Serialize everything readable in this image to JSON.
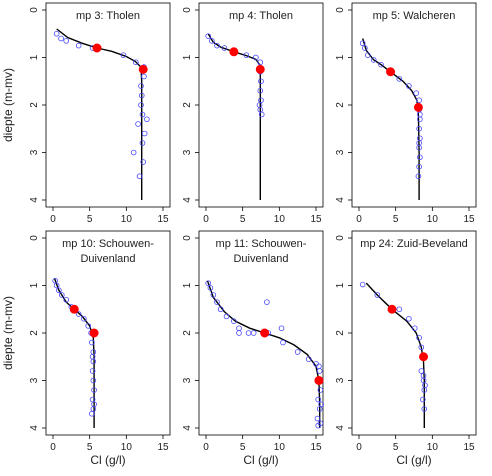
{
  "figure": {
    "y_axis_label": "diepte (m-mv)",
    "x_axis_label": "Cl (g/l)",
    "colors": {
      "line": "#000000",
      "points": "#4444ff",
      "highlight": "#ff0000",
      "frame": "#000000"
    }
  },
  "chart_data": [
    {
      "type": "scatter",
      "title": "mp 3: Tholen",
      "xlim": [
        0,
        15
      ],
      "ylim": [
        0,
        4
      ],
      "x_ticks": [
        0,
        5,
        10,
        15
      ],
      "y_ticks": [
        0,
        1,
        2,
        3,
        4
      ],
      "y_inverted": true,
      "observations": [
        [
          0.5,
          0.5
        ],
        [
          1.1,
          0.6
        ],
        [
          1.8,
          0.65
        ],
        [
          3.5,
          0.75
        ],
        [
          5.4,
          0.8
        ],
        [
          9.6,
          0.95
        ],
        [
          11.3,
          1.1
        ],
        [
          12.4,
          1.2
        ],
        [
          12.4,
          1.4
        ],
        [
          12.0,
          1.6
        ],
        [
          12.1,
          1.8
        ],
        [
          12.0,
          2.0
        ],
        [
          12.2,
          2.2
        ],
        [
          11.6,
          2.4
        ],
        [
          12.5,
          2.6
        ],
        [
          12.8,
          2.3
        ],
        [
          12.2,
          2.8
        ],
        [
          12.3,
          3.2
        ],
        [
          11.0,
          3.0
        ],
        [
          11.8,
          3.5
        ]
      ],
      "highlight_points": [
        [
          6.0,
          0.8
        ],
        [
          12.3,
          1.25
        ]
      ],
      "fit_curve": [
        [
          0.5,
          0.4
        ],
        [
          2.0,
          0.58
        ],
        [
          4.0,
          0.7
        ],
        [
          6.0,
          0.8
        ],
        [
          8.0,
          0.87
        ],
        [
          10.0,
          0.98
        ],
        [
          11.2,
          1.08
        ],
        [
          12.0,
          1.2
        ],
        [
          12.1,
          1.5
        ],
        [
          12.1,
          2.0
        ],
        [
          12.1,
          3.0
        ],
        [
          12.1,
          4.0
        ]
      ]
    },
    {
      "type": "scatter",
      "title": "mp 4: Tholen",
      "xlim": [
        0,
        15
      ],
      "ylim": [
        0,
        4
      ],
      "x_ticks": [
        0,
        5,
        10,
        15
      ],
      "y_ticks": [
        0,
        1,
        2,
        3,
        4
      ],
      "y_inverted": true,
      "observations": [
        [
          0.3,
          0.55
        ],
        [
          0.8,
          0.65
        ],
        [
          1.5,
          0.75
        ],
        [
          2.5,
          0.8
        ],
        [
          3.8,
          0.88
        ],
        [
          5.5,
          0.95
        ],
        [
          6.8,
          1.0
        ],
        [
          7.4,
          1.1
        ],
        [
          7.4,
          1.3
        ],
        [
          7.5,
          1.5
        ],
        [
          7.4,
          1.7
        ],
        [
          7.5,
          1.9
        ],
        [
          7.4,
          2.1
        ],
        [
          7.6,
          2.2
        ],
        [
          7.3,
          2.0
        ]
      ],
      "highlight_points": [
        [
          3.8,
          0.88
        ],
        [
          7.4,
          1.25
        ]
      ],
      "fit_curve": [
        [
          0.3,
          0.5
        ],
        [
          1.0,
          0.68
        ],
        [
          2.0,
          0.78
        ],
        [
          3.8,
          0.88
        ],
        [
          5.5,
          0.96
        ],
        [
          6.8,
          1.04
        ],
        [
          7.3,
          1.15
        ],
        [
          7.4,
          1.35
        ],
        [
          7.4,
          2.0
        ],
        [
          7.4,
          3.0
        ],
        [
          7.4,
          4.0
        ]
      ]
    },
    {
      "type": "scatter",
      "title": "mp 5: Walcheren",
      "xlim": [
        0,
        15
      ],
      "ylim": [
        0,
        4
      ],
      "x_ticks": [
        0,
        5,
        10,
        15
      ],
      "y_ticks": [
        0,
        1,
        2,
        3,
        4
      ],
      "y_inverted": true,
      "observations": [
        [
          0.5,
          0.7
        ],
        [
          0.8,
          0.8
        ],
        [
          1.2,
          0.95
        ],
        [
          2.0,
          1.05
        ],
        [
          3.0,
          1.15
        ],
        [
          4.5,
          1.3
        ],
        [
          5.5,
          1.45
        ],
        [
          6.8,
          1.6
        ],
        [
          7.8,
          1.75
        ],
        [
          8.2,
          1.9
        ],
        [
          8.2,
          2.1
        ],
        [
          8.3,
          2.3
        ],
        [
          8.2,
          2.5
        ],
        [
          8.3,
          2.7
        ],
        [
          8.2,
          2.9
        ],
        [
          8.3,
          3.1
        ],
        [
          8.2,
          3.3
        ],
        [
          8.1,
          3.5
        ],
        [
          8.3,
          2.2
        ],
        [
          8.2,
          2.8
        ]
      ],
      "highlight_points": [
        [
          4.3,
          1.3
        ],
        [
          8.1,
          2.05
        ]
      ],
      "fit_curve": [
        [
          0.5,
          0.6
        ],
        [
          1.0,
          0.85
        ],
        [
          2.0,
          1.05
        ],
        [
          3.0,
          1.15
        ],
        [
          4.3,
          1.3
        ],
        [
          6.0,
          1.5
        ],
        [
          7.2,
          1.7
        ],
        [
          7.9,
          1.9
        ],
        [
          8.1,
          2.2
        ],
        [
          8.2,
          3.0
        ],
        [
          8.2,
          4.0
        ]
      ]
    },
    {
      "type": "scatter",
      "title": "mp 10: Schouwen-Duivenland",
      "title_lines": [
        "mp 10: Schouwen-",
        "Duivenland"
      ],
      "xlim": [
        0,
        15
      ],
      "ylim": [
        0,
        4
      ],
      "x_ticks": [
        0,
        5,
        10,
        15
      ],
      "y_ticks": [
        0,
        1,
        2,
        3,
        4
      ],
      "y_inverted": true,
      "observations": [
        [
          0.3,
          0.9
        ],
        [
          0.5,
          1.0
        ],
        [
          0.8,
          1.1
        ],
        [
          1.2,
          1.2
        ],
        [
          1.8,
          1.3
        ],
        [
          2.5,
          1.45
        ],
        [
          3.5,
          1.6
        ],
        [
          4.2,
          1.7
        ],
        [
          4.8,
          1.85
        ],
        [
          5.2,
          2.0
        ],
        [
          5.3,
          2.2
        ],
        [
          5.5,
          2.4
        ],
        [
          5.5,
          2.6
        ],
        [
          5.4,
          2.8
        ],
        [
          5.5,
          3.0
        ],
        [
          5.6,
          3.2
        ],
        [
          5.4,
          3.4
        ],
        [
          5.5,
          3.6
        ],
        [
          5.3,
          3.7
        ],
        [
          5.6,
          3.5
        ],
        [
          5.4,
          2.5
        ]
      ],
      "highlight_points": [
        [
          2.9,
          1.5
        ],
        [
          5.6,
          2.0
        ]
      ],
      "fit_curve": [
        [
          0.2,
          0.85
        ],
        [
          0.8,
          1.1
        ],
        [
          1.8,
          1.35
        ],
        [
          2.9,
          1.5
        ],
        [
          4.0,
          1.65
        ],
        [
          5.0,
          1.85
        ],
        [
          5.5,
          2.1
        ],
        [
          5.6,
          2.5
        ],
        [
          5.6,
          3.0
        ],
        [
          5.6,
          4.0
        ]
      ]
    },
    {
      "type": "scatter",
      "title": "mp 11: Schouwen-Duivenland",
      "title_lines": [
        "mp 11: Schouwen-",
        "Duivenland"
      ],
      "xlim": [
        0,
        15
      ],
      "ylim": [
        0,
        4
      ],
      "x_ticks": [
        0,
        5,
        10,
        15
      ],
      "y_ticks": [
        0,
        1,
        2,
        3,
        4
      ],
      "y_inverted": true,
      "observations": [
        [
          0.3,
          0.95
        ],
        [
          0.6,
          1.05
        ],
        [
          1.0,
          1.2
        ],
        [
          1.5,
          1.35
        ],
        [
          2.0,
          1.5
        ],
        [
          2.8,
          1.65
        ],
        [
          3.8,
          1.75
        ],
        [
          4.5,
          1.9
        ],
        [
          5.8,
          2.0
        ],
        [
          8.5,
          2.0
        ],
        [
          10.5,
          2.2
        ],
        [
          12.5,
          2.4
        ],
        [
          14.0,
          2.55
        ],
        [
          15.0,
          2.65
        ],
        [
          15.5,
          2.8
        ],
        [
          15.4,
          3.0
        ],
        [
          15.6,
          3.2
        ],
        [
          15.3,
          3.4
        ],
        [
          15.5,
          3.6
        ],
        [
          15.2,
          3.8
        ],
        [
          15.6,
          3.9
        ],
        [
          15.4,
          2.7
        ],
        [
          15.7,
          3.5
        ],
        [
          6.5,
          2.0
        ],
        [
          8.3,
          1.35
        ],
        [
          10.3,
          1.9
        ],
        [
          4.5,
          2.0
        ],
        [
          15.3,
          3.95
        ]
      ],
      "highlight_points": [
        [
          8.0,
          2.0
        ],
        [
          15.4,
          3.0
        ]
      ],
      "fit_curve": [
        [
          0.2,
          0.9
        ],
        [
          1.0,
          1.25
        ],
        [
          2.5,
          1.55
        ],
        [
          4.0,
          1.75
        ],
        [
          6.0,
          1.9
        ],
        [
          8.0,
          2.0
        ],
        [
          10.0,
          2.1
        ],
        [
          12.0,
          2.25
        ],
        [
          13.8,
          2.45
        ],
        [
          15.0,
          2.7
        ],
        [
          15.4,
          3.0
        ],
        [
          15.5,
          3.5
        ],
        [
          15.5,
          4.0
        ]
      ]
    },
    {
      "type": "scatter",
      "title": "mp 24: Zuid-Beveland",
      "xlim": [
        0,
        15
      ],
      "ylim": [
        0,
        4
      ],
      "x_ticks": [
        0,
        5,
        10,
        15
      ],
      "y_ticks": [
        0,
        1,
        2,
        3,
        4
      ],
      "y_inverted": true,
      "observations": [
        [
          0.5,
          0.98
        ],
        [
          2.5,
          1.2
        ],
        [
          5.5,
          1.5
        ],
        [
          6.8,
          1.7
        ],
        [
          7.6,
          1.9
        ],
        [
          8.2,
          2.1
        ],
        [
          8.5,
          2.3
        ],
        [
          8.7,
          2.5
        ],
        [
          8.5,
          2.8
        ],
        [
          8.8,
          3.0
        ],
        [
          8.9,
          3.2
        ],
        [
          8.7,
          3.4
        ],
        [
          8.9,
          3.6
        ],
        [
          8.8,
          2.9
        ],
        [
          9.0,
          3.1
        ]
      ],
      "highlight_points": [
        [
          4.5,
          1.5
        ],
        [
          8.8,
          2.5
        ]
      ],
      "fit_curve": [
        [
          1.0,
          0.95
        ],
        [
          2.5,
          1.2
        ],
        [
          4.5,
          1.5
        ],
        [
          6.5,
          1.75
        ],
        [
          7.8,
          2.0
        ],
        [
          8.5,
          2.3
        ],
        [
          8.8,
          2.6
        ],
        [
          8.9,
          3.0
        ],
        [
          8.9,
          4.0
        ]
      ]
    }
  ]
}
